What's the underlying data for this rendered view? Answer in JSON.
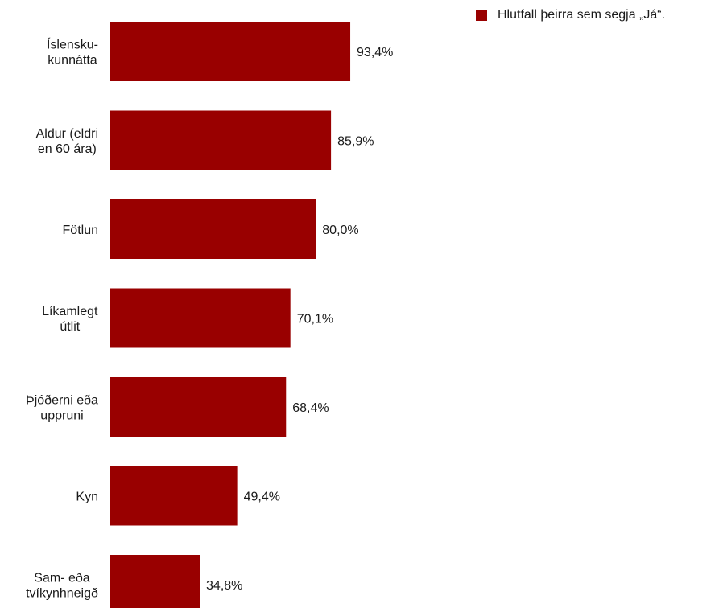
{
  "chart_data": {
    "type": "bar",
    "orientation": "horizontal",
    "categories": [
      [
        "Íslensku-",
        "kunnátta"
      ],
      [
        "Aldur (eldri",
        "en 60 ára)"
      ],
      [
        "Fötlun"
      ],
      [
        "Líkamlegt",
        "útlit"
      ],
      [
        "Þjóðerni eða",
        "uppruni"
      ],
      [
        "Kyn"
      ],
      [
        "Sam- eða",
        "tvíkynhneigð"
      ]
    ],
    "series": [
      {
        "name": "Hlutfall þeirra sem segja „Já“.",
        "values": [
          93.4,
          85.9,
          80.0,
          70.1,
          68.4,
          49.4,
          34.8
        ],
        "value_labels": [
          "93,4%",
          "85,9%",
          "80,0%",
          "70,1%",
          "68,4%",
          "49,4%",
          "34,8%"
        ],
        "color": "#990000"
      }
    ],
    "xlim": [
      0,
      100
    ],
    "grid": false,
    "legend_position": "top-right"
  }
}
